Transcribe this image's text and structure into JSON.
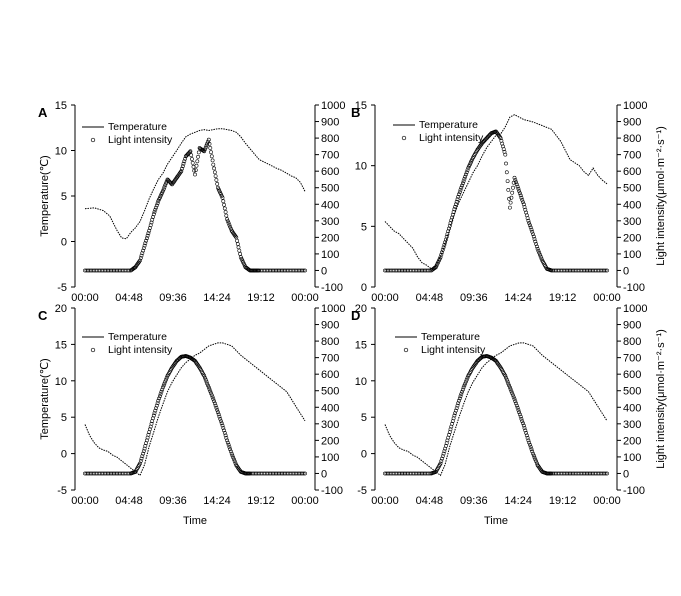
{
  "figure": {
    "left_axis_label": "Temperature(℃)",
    "right_axis_label": "Light intensity(μmol·m⁻²·s⁻¹)",
    "x_axis_label": "Time"
  },
  "chart_data": [
    {
      "type": "line",
      "panel": "A",
      "x_ticks": [
        "00:00",
        "04:48",
        "09:36",
        "14:24",
        "19:12",
        "00:00"
      ],
      "y_left": {
        "ticks": [
          15,
          10,
          5,
          0,
          -5
        ],
        "range": [
          -5,
          15
        ],
        "label": "Temperature(℃)"
      },
      "y_right": {
        "ticks": [
          1000,
          900,
          800,
          700,
          600,
          500,
          400,
          300,
          200,
          100,
          0,
          -100
        ],
        "range": [
          -100,
          1000
        ],
        "label": ""
      },
      "legend": [
        "Temperature",
        "Light intensity"
      ],
      "xlabel": "",
      "series": [
        {
          "name": "Temperature",
          "axis": "left",
          "x": [
            0.0,
            1.0,
            2.0,
            2.7,
            3.0,
            3.5,
            4.0,
            4.5,
            5.0,
            5.5,
            6.0,
            6.5,
            7.0,
            7.5,
            8.0,
            8.5,
            9.0,
            10.0,
            10.5,
            11.0,
            11.5,
            12.0,
            12.5,
            13.0,
            13.5,
            14.0,
            14.5,
            15.0,
            16.0,
            16.5,
            17.0,
            17.5,
            18.0,
            19.0,
            20.0,
            21.0,
            21.5,
            22.0,
            22.5,
            23.0,
            23.5,
            24.0
          ],
          "y": [
            3.6,
            3.7,
            3.4,
            2.8,
            2.2,
            1.2,
            0.4,
            0.3,
            1.0,
            1.5,
            2.2,
            3.4,
            4.7,
            5.8,
            6.8,
            7.5,
            8.5,
            10.0,
            10.8,
            11.5,
            11.8,
            12.0,
            12.2,
            12.3,
            12.2,
            12.3,
            12.4,
            12.4,
            12.2,
            12.0,
            11.5,
            10.8,
            10.2,
            9.0,
            8.5,
            8.0,
            7.8,
            7.5,
            7.2,
            7.0,
            6.5,
            5.5
          ]
        },
        {
          "name": "Light intensity",
          "axis": "right",
          "x": [
            0.0,
            1.0,
            2.0,
            3.0,
            4.0,
            5.0,
            5.5,
            6.0,
            6.5,
            7.0,
            7.5,
            8.0,
            8.5,
            9.0,
            9.5,
            10.0,
            10.5,
            11.0,
            11.5,
            12.0,
            12.5,
            13.0,
            13.5,
            14.0,
            14.5,
            15.0,
            15.5,
            16.0,
            16.5,
            17.0,
            17.5,
            18.0,
            18.5,
            19.0,
            20.0,
            21.0,
            22.0,
            23.0,
            24.0
          ],
          "y": [
            0,
            0,
            0,
            0,
            0,
            0,
            20,
            60,
            150,
            240,
            340,
            420,
            480,
            550,
            520,
            560,
            600,
            690,
            720,
            580,
            740,
            720,
            790,
            640,
            500,
            440,
            310,
            240,
            200,
            80,
            20,
            0,
            0,
            0,
            0,
            0,
            0,
            0,
            0
          ]
        }
      ]
    },
    {
      "type": "line",
      "panel": "B",
      "x_ticks": [
        "00:00",
        "04:48",
        "09:36",
        "14:24",
        "19:12",
        "00:00"
      ],
      "y_left": {
        "ticks": [
          15,
          10,
          5,
          0
        ],
        "range": [
          0,
          15
        ],
        "label": ""
      },
      "y_right": {
        "ticks": [
          1000,
          900,
          800,
          700,
          600,
          500,
          400,
          300,
          200,
          100,
          0,
          -100
        ],
        "range": [
          -100,
          1000
        ],
        "label": "Light intensity(μmol·m⁻²·s⁻¹)"
      },
      "legend": [
        "Temperature",
        "Light intensity"
      ],
      "xlabel": "",
      "series": [
        {
          "name": "Temperature",
          "axis": "left",
          "x": [
            0.0,
            0.5,
            1.0,
            1.5,
            2.0,
            2.5,
            3.0,
            3.5,
            4.0,
            4.5,
            5.0,
            5.5,
            6.0,
            6.5,
            7.0,
            7.5,
            8.0,
            8.5,
            9.0,
            9.5,
            10.0,
            10.5,
            11.0,
            11.5,
            12.0,
            12.5,
            13.0,
            13.5,
            14.0,
            15.0,
            16.0,
            17.0,
            18.0,
            19.0,
            20.0,
            21.0,
            21.5,
            22.0,
            22.5,
            23.0,
            23.5,
            24.0
          ],
          "y": [
            5.4,
            5.0,
            4.6,
            4.4,
            4.0,
            3.6,
            3.2,
            2.5,
            2.0,
            1.8,
            1.5,
            1.8,
            2.5,
            3.5,
            4.8,
            6.0,
            7.0,
            7.8,
            8.6,
            9.4,
            10.0,
            10.8,
            11.5,
            12.0,
            12.5,
            12.6,
            13.2,
            14.0,
            14.2,
            13.8,
            13.6,
            13.3,
            13.0,
            12.0,
            10.5,
            10.0,
            9.5,
            9.2,
            9.8,
            9.2,
            8.8,
            8.5
          ]
        },
        {
          "name": "Light intensity",
          "axis": "right",
          "x": [
            0.0,
            1.0,
            2.0,
            3.0,
            4.0,
            5.0,
            5.5,
            6.0,
            6.5,
            7.0,
            7.5,
            8.0,
            8.5,
            9.0,
            9.5,
            10.0,
            10.5,
            11.0,
            11.5,
            12.0,
            12.5,
            13.0,
            13.5,
            14.0,
            14.5,
            15.0,
            15.5,
            16.0,
            16.5,
            17.0,
            17.5,
            18.0,
            19.0,
            20.0,
            21.0,
            22.0,
            23.0,
            24.0
          ],
          "y": [
            0,
            0,
            0,
            0,
            0,
            0,
            20,
            80,
            170,
            270,
            370,
            460,
            540,
            620,
            680,
            730,
            770,
            800,
            830,
            840,
            800,
            700,
            380,
            560,
            480,
            400,
            300,
            220,
            130,
            60,
            10,
            0,
            0,
            0,
            0,
            0,
            0,
            0
          ]
        }
      ]
    },
    {
      "type": "line",
      "panel": "C",
      "x_ticks": [
        "00:00",
        "04:48",
        "09:36",
        "14:24",
        "19:12",
        "00:00"
      ],
      "y_left": {
        "ticks": [
          20,
          15,
          10,
          5,
          0,
          -5
        ],
        "range": [
          -5,
          20
        ],
        "label": "Temperature(℃)"
      },
      "y_right": {
        "ticks": [
          1000,
          900,
          800,
          700,
          600,
          500,
          400,
          300,
          200,
          100,
          0,
          -100
        ],
        "range": [
          -100,
          1000
        ],
        "label": ""
      },
      "legend": [
        "Temperature",
        "Light intensity"
      ],
      "xlabel": "Time",
      "series": [
        {
          "name": "Temperature",
          "axis": "left",
          "x": [
            0.0,
            0.5,
            1.0,
            1.5,
            2.0,
            2.5,
            3.0,
            3.5,
            4.0,
            4.5,
            5.0,
            5.5,
            6.0,
            6.5,
            7.0,
            7.5,
            8.0,
            8.5,
            9.0,
            9.5,
            10.0,
            10.5,
            11.0,
            11.5,
            12.0,
            12.5,
            13.0,
            13.5,
            14.0,
            14.5,
            15.0,
            15.5,
            16.0,
            17.0,
            18.0,
            19.0,
            20.0,
            21.0,
            22.0,
            22.5,
            23.0,
            23.5,
            24.0
          ],
          "y": [
            4.0,
            2.5,
            1.5,
            0.8,
            0.5,
            0.3,
            -0.2,
            -0.5,
            -1.0,
            -1.5,
            -2.0,
            -2.5,
            -3.0,
            -1.5,
            1.0,
            3.0,
            5.0,
            6.8,
            8.5,
            9.8,
            10.8,
            11.8,
            12.5,
            13.0,
            13.5,
            13.8,
            14.3,
            14.8,
            15.0,
            15.2,
            15.2,
            15.0,
            14.8,
            13.5,
            12.5,
            11.5,
            10.5,
            9.5,
            8.5,
            7.5,
            6.5,
            5.5,
            4.5
          ]
        },
        {
          "name": "Light intensity",
          "axis": "right",
          "x": [
            0.0,
            1.0,
            2.0,
            3.0,
            4.0,
            5.0,
            5.5,
            6.0,
            6.5,
            7.0,
            7.5,
            8.0,
            8.5,
            9.0,
            9.5,
            10.0,
            10.5,
            11.0,
            11.5,
            12.0,
            12.5,
            13.0,
            13.5,
            14.0,
            14.5,
            15.0,
            15.5,
            16.0,
            16.5,
            17.0,
            17.5,
            18.0,
            19.0,
            20.0,
            21.0,
            22.0,
            23.0,
            24.0
          ],
          "y": [
            0,
            0,
            0,
            0,
            0,
            0,
            10,
            60,
            150,
            250,
            350,
            440,
            520,
            590,
            640,
            680,
            705,
            710,
            700,
            680,
            640,
            590,
            520,
            450,
            370,
            290,
            200,
            120,
            50,
            10,
            0,
            0,
            0,
            0,
            0,
            0,
            0,
            0
          ]
        }
      ]
    },
    {
      "type": "line",
      "panel": "D",
      "x_ticks": [
        "00:00",
        "04:48",
        "09:36",
        "14:24",
        "19:12",
        "00:00"
      ],
      "y_left": {
        "ticks": [
          20,
          15,
          10,
          5,
          0,
          -5
        ],
        "range": [
          -5,
          20
        ],
        "label": ""
      },
      "y_right": {
        "ticks": [
          1000,
          900,
          800,
          700,
          600,
          500,
          400,
          300,
          200,
          100,
          0,
          -100
        ],
        "range": [
          -100,
          1000
        ],
        "label": "Light intensity(μmol·m⁻²·s⁻¹)"
      },
      "legend": [
        "Temperature",
        "Light intensity"
      ],
      "xlabel": "Time",
      "series": [
        {
          "name": "Temperature",
          "axis": "left",
          "x": [
            0.0,
            0.5,
            1.0,
            1.5,
            2.0,
            2.5,
            3.0,
            3.5,
            4.0,
            4.5,
            5.0,
            5.5,
            6.0,
            6.5,
            7.0,
            7.5,
            8.0,
            8.5,
            9.0,
            9.5,
            10.0,
            10.5,
            11.0,
            11.5,
            12.0,
            12.5,
            13.0,
            13.5,
            14.0,
            14.5,
            15.0,
            15.5,
            16.0,
            17.0,
            18.0,
            19.0,
            20.0,
            21.0,
            22.0,
            22.5,
            23.0,
            23.5,
            24.0
          ],
          "y": [
            4.0,
            2.5,
            1.5,
            0.8,
            0.5,
            0.3,
            -0.2,
            -0.5,
            -1.0,
            -1.5,
            -2.0,
            -2.5,
            -3.0,
            -1.5,
            1.0,
            3.0,
            5.0,
            6.8,
            8.5,
            9.8,
            10.8,
            11.8,
            12.5,
            13.0,
            13.5,
            13.8,
            14.3,
            14.8,
            15.0,
            15.2,
            15.2,
            15.0,
            14.8,
            13.5,
            12.5,
            11.5,
            10.5,
            9.5,
            8.5,
            7.5,
            6.5,
            5.5,
            4.5
          ]
        },
        {
          "name": "Light intensity",
          "axis": "right",
          "x": [
            0.0,
            1.0,
            2.0,
            3.0,
            4.0,
            5.0,
            5.5,
            6.0,
            6.5,
            7.0,
            7.5,
            8.0,
            8.5,
            9.0,
            9.5,
            10.0,
            10.5,
            11.0,
            11.5,
            12.0,
            12.5,
            13.0,
            13.5,
            14.0,
            14.5,
            15.0,
            15.5,
            16.0,
            16.5,
            17.0,
            17.5,
            18.0,
            19.0,
            20.0,
            21.0,
            22.0,
            23.0,
            24.0
          ],
          "y": [
            0,
            0,
            0,
            0,
            0,
            0,
            10,
            60,
            150,
            250,
            350,
            440,
            520,
            590,
            640,
            680,
            705,
            710,
            700,
            680,
            640,
            590,
            520,
            450,
            370,
            290,
            200,
            120,
            50,
            10,
            0,
            0,
            0,
            0,
            0,
            0,
            0,
            0
          ]
        }
      ]
    }
  ]
}
